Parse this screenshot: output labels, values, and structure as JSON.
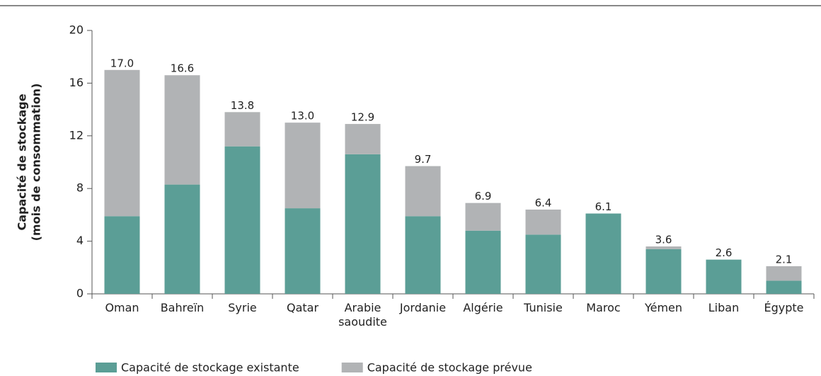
{
  "chart_data": {
    "type": "stacked_bar",
    "ylabel": [
      "Capacité de stockage",
      "(mois de consommation)"
    ],
    "categories": [
      "Oman",
      "Bahreïn",
      "Syrie",
      "Qatar",
      "Arabie saoudite",
      "Jordanie",
      "Algérie",
      "Tunisie",
      "Maroc",
      "Yémen",
      "Liban",
      "Égypte"
    ],
    "series": [
      {
        "name": "Capacité de stockage existante",
        "color": "#5b9e96",
        "values": [
          5.9,
          8.3,
          11.2,
          6.5,
          10.6,
          5.9,
          4.8,
          4.5,
          6.1,
          3.4,
          2.6,
          1.0
        ]
      },
      {
        "name": "Capacité de stockage prévue",
        "color": "#b1b3b5",
        "values": [
          11.1,
          8.3,
          2.6,
          6.5,
          2.3,
          3.8,
          2.1,
          1.9,
          0,
          0.2,
          0,
          1.1
        ]
      }
    ],
    "total_labels": [
      "17.0",
      "16.6",
      "13.8",
      "13.0",
      "12.9",
      "9.7",
      "6.9",
      "6.4",
      "6.1",
      "3.6",
      "2.6",
      "2.1"
    ],
    "ylim": [
      0,
      20
    ],
    "yticks": [
      0,
      4,
      8,
      12,
      16,
      20
    ],
    "grid": false,
    "legend": "bottom-left"
  }
}
